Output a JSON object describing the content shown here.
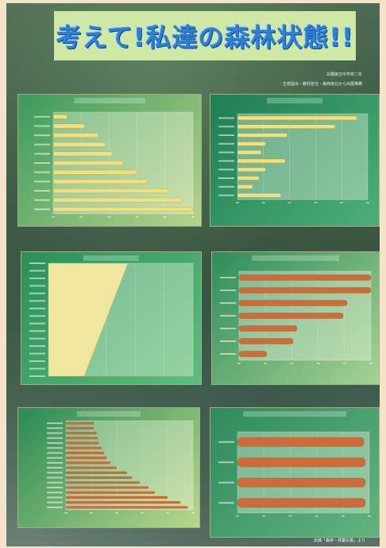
{
  "poster": {
    "title": "考えて!私達の森林状態!!",
    "author_line1": "白橋第五中学校二年",
    "author_line2": "生徒提出・教科担当・東西南北から出展推薦",
    "source_caption": "出典「森林・林業白書」より"
  },
  "colors": {
    "title_bg": "#cfe8a6",
    "title_text": "#2f7fd4",
    "yellow_bar": "#f2e07a",
    "orange_bar": "#cd6b3a",
    "green_panel": "#2e8b57"
  },
  "chart_data": [
    {
      "type": "bar",
      "orientation": "horizontal",
      "title": "",
      "categories": [
        "",
        "",
        "",
        "",
        "",
        "",
        "",
        "",
        "",
        "",
        ""
      ],
      "values": [
        4,
        9,
        13,
        15,
        17,
        20,
        24,
        27,
        33,
        37,
        40
      ],
      "xlim": [
        0,
        40
      ],
      "bar_color": "#f2e07a"
    },
    {
      "type": "bar",
      "orientation": "horizontal",
      "title": "",
      "categories": [
        "",
        "",
        "",
        "",
        "",
        "",
        "",
        "",
        "",
        ""
      ],
      "values": [
        55,
        45,
        23,
        13,
        11,
        22,
        13,
        10,
        7,
        20
      ],
      "xlim": [
        0,
        60
      ],
      "bar_color": "#f2e07a"
    },
    {
      "type": "area",
      "title": "",
      "categories": [
        "",
        "",
        "",
        "",
        "",
        "",
        "",
        "",
        "",
        "",
        "",
        "",
        "",
        "",
        "",
        ""
      ],
      "values": [
        98,
        95,
        92,
        88,
        84,
        80,
        75,
        70,
        66,
        62,
        58,
        53,
        47,
        40,
        32,
        25
      ],
      "ylim": [
        0,
        100
      ],
      "fill_color": "#f0e6a0"
    },
    {
      "type": "bar",
      "orientation": "horizontal",
      "title": "",
      "categories": [
        "",
        "",
        "",
        "",
        "",
        "",
        ""
      ],
      "values": [
        100,
        100,
        82,
        79,
        44,
        41,
        21
      ],
      "xlim": [
        0,
        100
      ],
      "bar_color": "#cd6b3a"
    },
    {
      "type": "bar",
      "orientation": "horizontal",
      "title": "",
      "categories": [
        "",
        "",
        "",
        "",
        "",
        "",
        "",
        "",
        "",
        "",
        "",
        "",
        "",
        "",
        "",
        "",
        "",
        ""
      ],
      "values": [
        22,
        22,
        24,
        25,
        26,
        28,
        30,
        32,
        35,
        40,
        48,
        52,
        58,
        65,
        70,
        80,
        90,
        96
      ],
      "xlim": [
        0,
        100
      ],
      "bar_color": "#cd6b3a"
    },
    {
      "type": "bar",
      "orientation": "horizontal",
      "title": "",
      "categories": [
        "",
        "",
        "",
        ""
      ],
      "values": [
        96,
        97,
        97,
        97
      ],
      "xlim": [
        0,
        100
      ],
      "bar_color": "#cd6b3a"
    }
  ]
}
